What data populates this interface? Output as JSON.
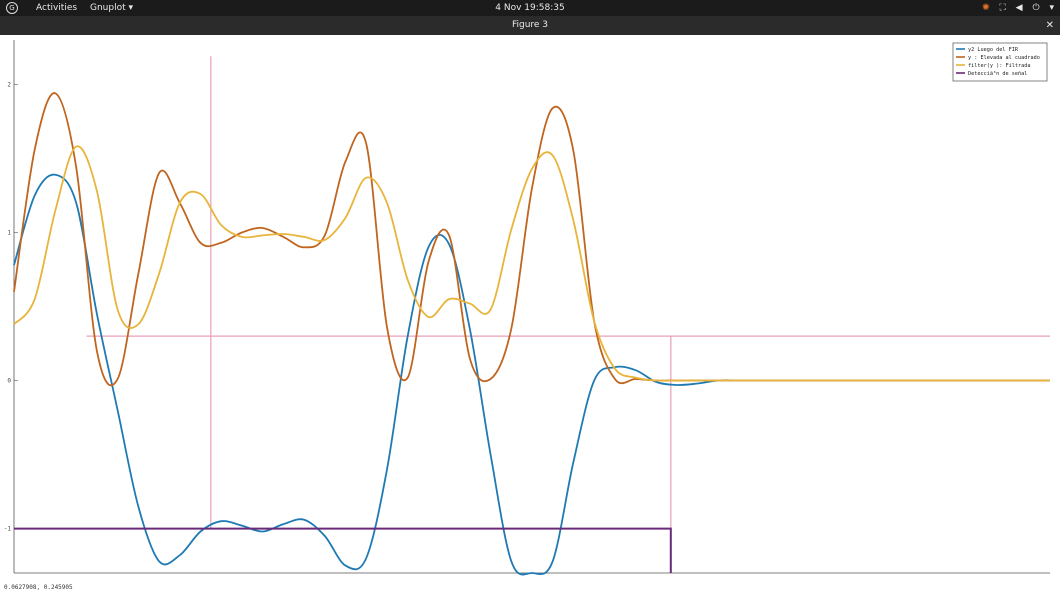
{
  "topbar": {
    "activities": "Activities",
    "app_menu": "Gnuplot ▾",
    "clock": "4 Nov 19:58:35",
    "logo_icon": "gnome-logo-icon",
    "tray_icons": [
      "update-icon",
      "network-icon",
      "volume-icon",
      "power-icon"
    ]
  },
  "window": {
    "title": "Figure 3",
    "close_label": "✕"
  },
  "status": {
    "coords": "0.0627908,  0.245905"
  },
  "chart_data": {
    "type": "line",
    "title": "",
    "xlabel": "",
    "ylabel": "",
    "xlim": [
      0,
      1
    ],
    "ylim": [
      -1.3,
      2.3
    ],
    "yticks": [
      -1,
      0,
      1,
      2
    ],
    "ytick_labels": [
      "-1",
      "0",
      "1",
      "2"
    ],
    "legend_position": "top-right",
    "grid": false,
    "series": [
      {
        "name": "y2 Luego del FIR",
        "color": "#1f7ab4",
        "x": [
          0,
          0.02,
          0.04,
          0.06,
          0.08,
          0.1,
          0.12,
          0.14,
          0.16,
          0.18,
          0.2,
          0.22,
          0.24,
          0.26,
          0.28,
          0.3,
          0.32,
          0.34,
          0.36,
          0.38,
          0.4,
          0.42,
          0.44,
          0.46,
          0.48,
          0.5,
          0.52,
          0.54,
          0.56,
          0.58,
          0.6,
          0.62,
          0.64,
          0.66,
          0.68,
          0.7,
          0.72,
          0.74,
          0.76,
          0.78,
          0.8,
          0.85,
          0.9,
          0.95,
          1.0
        ],
        "y": [
          0.78,
          1.25,
          1.39,
          1.2,
          0.45,
          -0.2,
          -0.85,
          -1.22,
          -1.18,
          -1.02,
          -0.95,
          -0.98,
          -1.02,
          -0.97,
          -0.94,
          -1.05,
          -1.25,
          -1.2,
          -0.6,
          0.3,
          0.9,
          0.92,
          0.35,
          -0.5,
          -1.22,
          -1.3,
          -1.22,
          -0.55,
          0.0,
          0.09,
          0.07,
          -0.01,
          -0.03,
          -0.02,
          0.0,
          0.0,
          0.0,
          0.0,
          0.0,
          0.0,
          0.0,
          0.0,
          0.0,
          0.0,
          0.0
        ]
      },
      {
        "name": "y : Elevada al cuadrado",
        "color": "#c0651f",
        "x": [
          0,
          0.02,
          0.04,
          0.06,
          0.08,
          0.1,
          0.12,
          0.14,
          0.16,
          0.18,
          0.2,
          0.22,
          0.24,
          0.26,
          0.28,
          0.3,
          0.32,
          0.34,
          0.36,
          0.38,
          0.4,
          0.42,
          0.44,
          0.46,
          0.48,
          0.5,
          0.52,
          0.54,
          0.56,
          0.58,
          0.6,
          0.62,
          0.64,
          0.66,
          0.68,
          0.7,
          0.72,
          0.74,
          0.76,
          0.78,
          0.8,
          0.85,
          0.9,
          0.95,
          1.0
        ],
        "y": [
          0.6,
          1.56,
          1.94,
          1.44,
          0.2,
          0.01,
          0.72,
          1.4,
          1.2,
          0.93,
          0.93,
          1.0,
          1.03,
          0.97,
          0.9,
          0.98,
          1.48,
          1.6,
          0.36,
          0.02,
          0.8,
          0.98,
          0.15,
          0.01,
          0.35,
          1.3,
          1.84,
          1.55,
          0.4,
          0.01,
          0.01,
          0.0,
          0.0,
          0.0,
          0.0,
          0.0,
          0.0,
          0.0,
          0.0,
          0.0,
          0.0,
          0.0,
          0.0,
          0.0,
          0.0
        ]
      },
      {
        "name": "filter(y ): Filtrada",
        "color": "#e8b43a",
        "x": [
          0,
          0.02,
          0.04,
          0.06,
          0.08,
          0.1,
          0.12,
          0.14,
          0.16,
          0.18,
          0.2,
          0.22,
          0.24,
          0.26,
          0.28,
          0.3,
          0.32,
          0.34,
          0.36,
          0.38,
          0.4,
          0.42,
          0.44,
          0.46,
          0.48,
          0.5,
          0.52,
          0.54,
          0.56,
          0.58,
          0.6,
          0.62,
          0.64,
          0.66,
          0.68,
          0.7,
          0.72,
          0.74,
          0.76,
          0.78,
          0.8,
          0.85,
          0.9,
          0.95,
          1.0
        ],
        "y": [
          0.38,
          0.55,
          1.15,
          1.58,
          1.28,
          0.48,
          0.38,
          0.72,
          1.2,
          1.26,
          1.05,
          0.97,
          0.98,
          0.99,
          0.97,
          0.95,
          1.1,
          1.37,
          1.2,
          0.68,
          0.43,
          0.55,
          0.52,
          0.48,
          1.02,
          1.43,
          1.52,
          1.08,
          0.4,
          0.08,
          0.02,
          0.0,
          0.0,
          0.0,
          0.0,
          0.0,
          0.0,
          0.0,
          0.0,
          0.0,
          0.0,
          0.0,
          0.0,
          0.0,
          0.0
        ]
      },
      {
        "name": "Detecciã³n de señal",
        "color": "#6a2a7a",
        "x": [
          0,
          0.634,
          0.634
        ],
        "y": [
          -1,
          -1,
          -1.3
        ]
      }
    ],
    "annotations": [
      {
        "kind": "hline",
        "y": 0.3,
        "x_from": 0.07,
        "x_to": 1.0,
        "color": "#e8a0b8"
      },
      {
        "kind": "vline",
        "x": 0.19,
        "y_from": -1.0,
        "y_to": 2.19,
        "color": "#e8a0b8"
      },
      {
        "kind": "vline",
        "x": 0.634,
        "y_from": -1.3,
        "y_to": 0.3,
        "color": "#e8a0b8"
      }
    ]
  }
}
